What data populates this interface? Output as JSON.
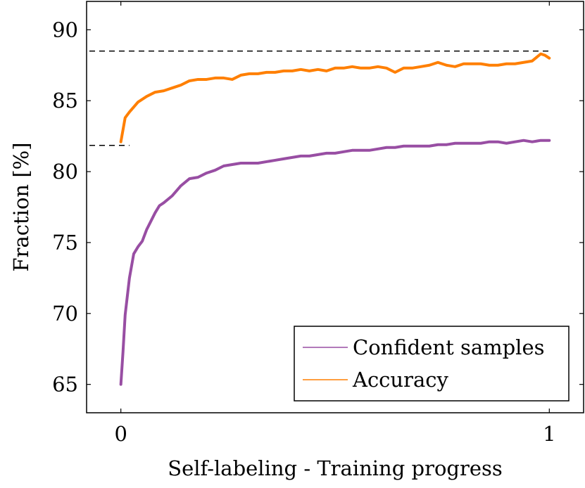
{
  "chart_data": {
    "type": "line",
    "title": "",
    "xlabel": "Self-labeling - Training progress",
    "ylabel": "Fraction [%]",
    "xlim": [
      -0.08,
      1.08
    ],
    "ylim": [
      63,
      92
    ],
    "x_ticks": [
      0,
      1
    ],
    "x_tick_labels": [
      "0",
      "1"
    ],
    "y_ticks": [
      65,
      70,
      75,
      80,
      85,
      90
    ],
    "y_tick_labels": [
      "65",
      "70",
      "75",
      "80",
      "85",
      "90"
    ],
    "grid": false,
    "legend_position": "bottom-right",
    "reference_lines": [
      {
        "y": 88.5,
        "x_range": [
          -0.08,
          1.0
        ],
        "style": "dashed",
        "color": "#000000"
      },
      {
        "y": 81.85,
        "x_range": [
          -0.08,
          0.02
        ],
        "style": "dashed",
        "color": "#000000"
      }
    ],
    "series": [
      {
        "name": "Confident samples",
        "color": "#984ea3",
        "x": [
          0.0,
          0.005,
          0.01,
          0.015,
          0.02,
          0.03,
          0.04,
          0.05,
          0.06,
          0.07,
          0.08,
          0.09,
          0.1,
          0.12,
          0.14,
          0.16,
          0.18,
          0.2,
          0.22,
          0.24,
          0.26,
          0.28,
          0.3,
          0.32,
          0.34,
          0.36,
          0.38,
          0.4,
          0.42,
          0.44,
          0.46,
          0.48,
          0.5,
          0.52,
          0.54,
          0.56,
          0.58,
          0.6,
          0.62,
          0.64,
          0.66,
          0.68,
          0.7,
          0.72,
          0.74,
          0.76,
          0.78,
          0.8,
          0.82,
          0.84,
          0.86,
          0.88,
          0.9,
          0.92,
          0.94,
          0.96,
          0.98,
          1.0
        ],
        "values": [
          65.0,
          67.3,
          69.9,
          71.2,
          72.5,
          74.2,
          74.7,
          75.1,
          75.9,
          76.5,
          77.1,
          77.6,
          77.8,
          78.3,
          79.0,
          79.5,
          79.6,
          79.9,
          80.1,
          80.4,
          80.5,
          80.6,
          80.6,
          80.6,
          80.7,
          80.8,
          80.9,
          81.0,
          81.1,
          81.1,
          81.2,
          81.3,
          81.3,
          81.4,
          81.5,
          81.5,
          81.5,
          81.6,
          81.7,
          81.7,
          81.8,
          81.8,
          81.8,
          81.8,
          81.9,
          81.9,
          82.0,
          82.0,
          82.0,
          82.0,
          82.1,
          82.1,
          82.0,
          82.1,
          82.2,
          82.1,
          82.2,
          82.2
        ]
      },
      {
        "name": "Accuracy",
        "color": "#ff7f00",
        "x": [
          0.0,
          0.01,
          0.02,
          0.04,
          0.06,
          0.08,
          0.1,
          0.12,
          0.14,
          0.16,
          0.18,
          0.2,
          0.22,
          0.24,
          0.26,
          0.28,
          0.3,
          0.32,
          0.34,
          0.36,
          0.38,
          0.4,
          0.42,
          0.44,
          0.46,
          0.48,
          0.5,
          0.52,
          0.54,
          0.56,
          0.58,
          0.6,
          0.62,
          0.64,
          0.66,
          0.68,
          0.7,
          0.72,
          0.74,
          0.76,
          0.78,
          0.8,
          0.82,
          0.84,
          0.86,
          0.88,
          0.9,
          0.92,
          0.94,
          0.96,
          0.98,
          0.99,
          1.0
        ],
        "values": [
          82.1,
          83.8,
          84.2,
          84.9,
          85.3,
          85.6,
          85.7,
          85.9,
          86.1,
          86.4,
          86.5,
          86.5,
          86.6,
          86.6,
          86.5,
          86.8,
          86.9,
          86.9,
          87.0,
          87.0,
          87.1,
          87.1,
          87.2,
          87.1,
          87.2,
          87.1,
          87.3,
          87.3,
          87.4,
          87.3,
          87.3,
          87.4,
          87.3,
          87.0,
          87.3,
          87.3,
          87.4,
          87.5,
          87.7,
          87.5,
          87.4,
          87.6,
          87.6,
          87.6,
          87.5,
          87.5,
          87.6,
          87.6,
          87.7,
          87.8,
          88.3,
          88.2,
          88.0
        ]
      }
    ]
  }
}
